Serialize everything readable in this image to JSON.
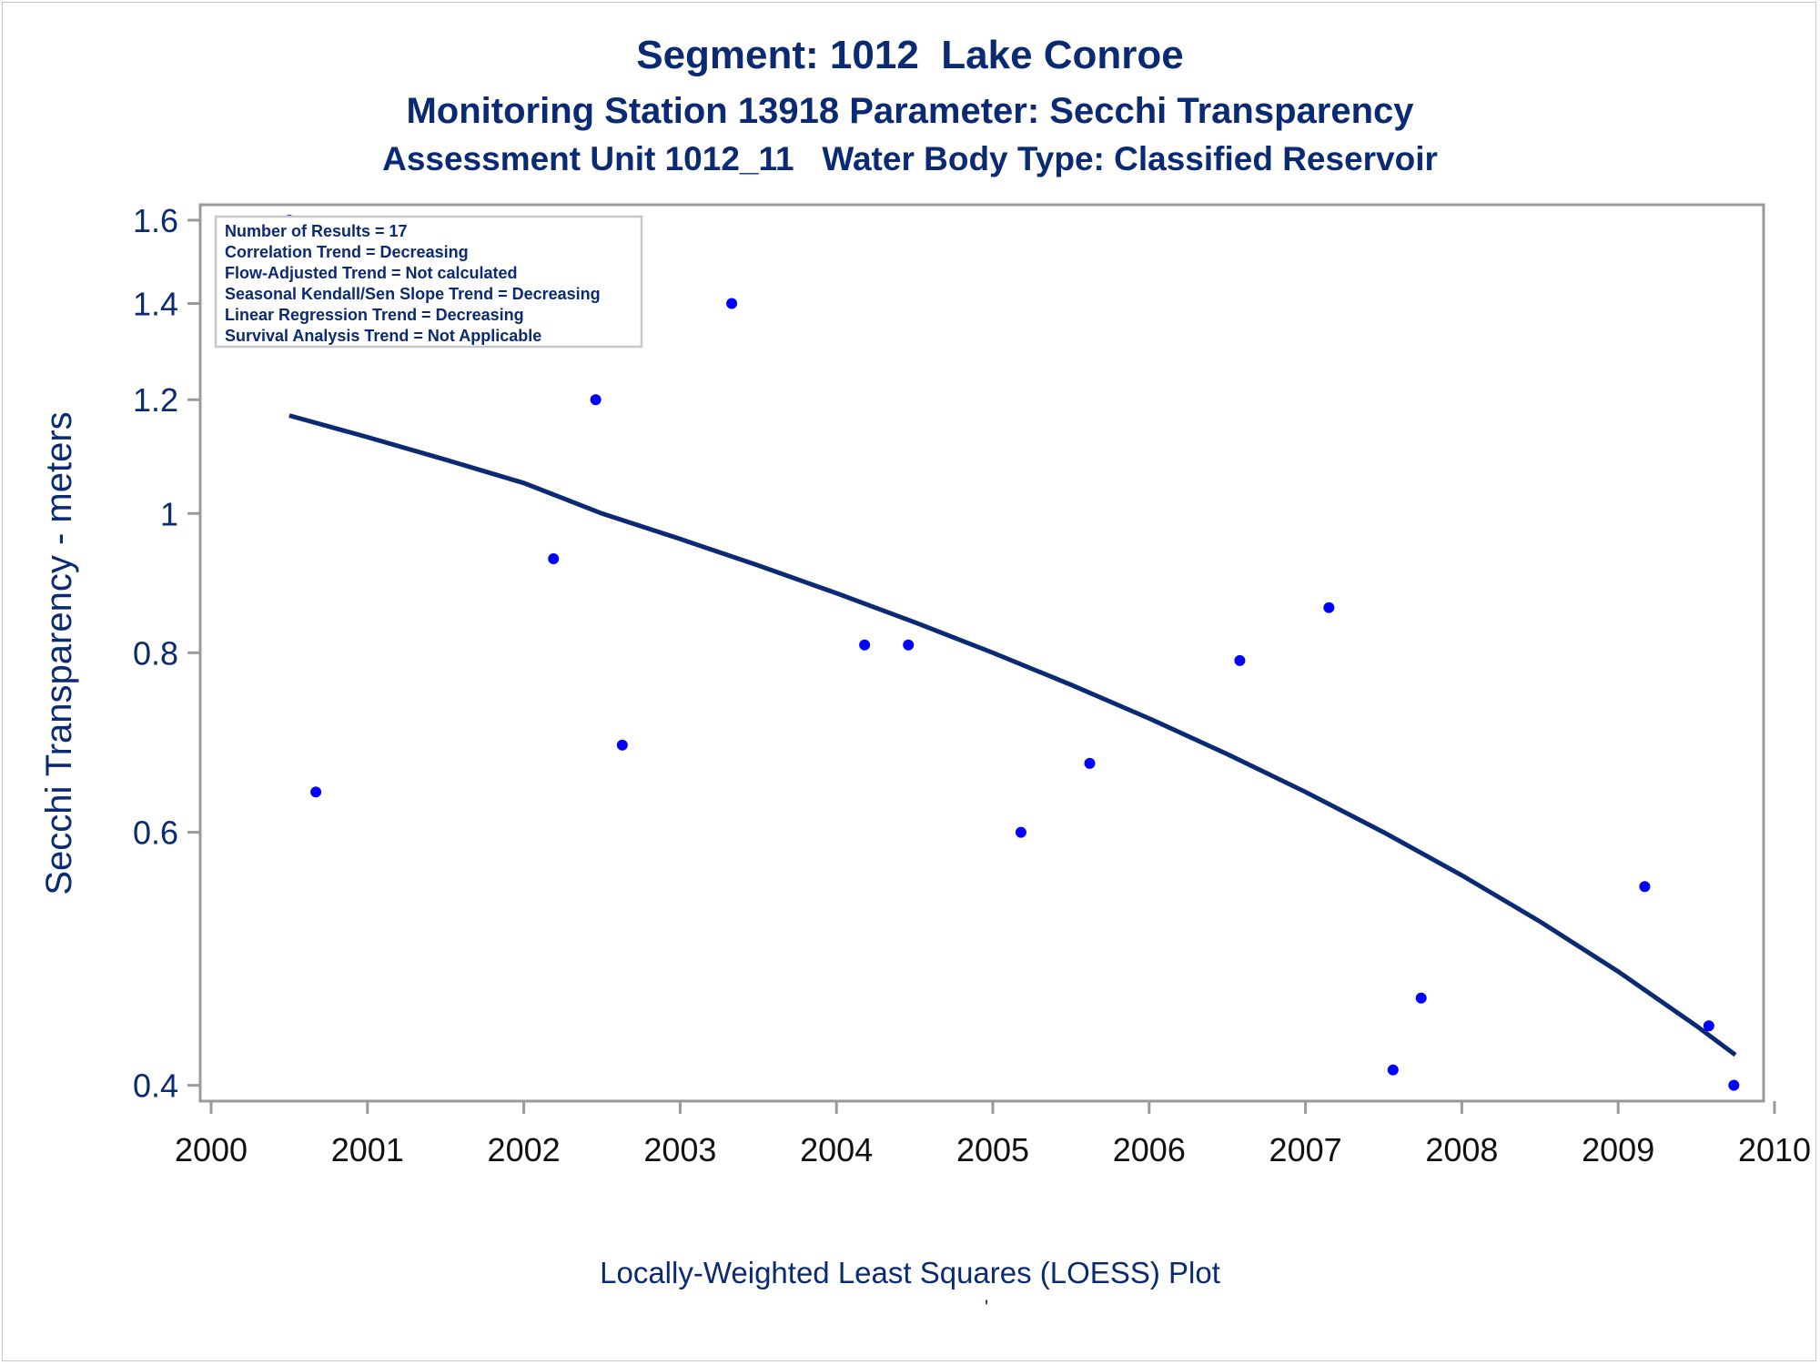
{
  "titles": {
    "line1": "Segment: 1012  Lake Conroe",
    "line2": "Monitoring Station 13918 Parameter: Secchi Transparency",
    "line3": "Assessment Unit 1012_11   Water Body Type: Classified Reservoir"
  },
  "footnote": "Locally-Weighted Least Squares (LOESS) Plot",
  "footnote_mark": "'",
  "colors": {
    "text": "#0b2a74",
    "points": "#0000ff",
    "curve": "#0b2a74",
    "axis": "#9a9a9a"
  },
  "chart_data": {
    "type": "scatter",
    "ylabel": "Secchi Transparency - meters",
    "xlabel": "",
    "yscale": "log",
    "xlim": [
      2000,
      2010
    ],
    "ylim": [
      0.39,
      1.64
    ],
    "x_ticks": [
      "2000",
      "2001",
      "2002",
      "2003",
      "2004",
      "2005",
      "2006",
      "2007",
      "2008",
      "2009",
      "2010"
    ],
    "y_ticks": [
      {
        "value": 0.4,
        "label": "0.4"
      },
      {
        "value": 0.6,
        "label": "0.6"
      },
      {
        "value": 0.8,
        "label": "0.8"
      },
      {
        "value": 1.0,
        "label": "1"
      },
      {
        "value": 1.2,
        "label": "1.2"
      },
      {
        "value": 1.4,
        "label": "1.4"
      },
      {
        "value": 1.6,
        "label": "1.6"
      }
    ],
    "legend_position": "top-left",
    "stats_box": [
      "Number of Results = 17",
      "Correlation Trend = Decreasing",
      "Flow-Adjusted Trend = Not calculated",
      "Seasonal Kendall/Sen Slope Trend = Decreasing",
      "Linear Regression Trend = Decreasing",
      "Survival Analysis Trend = Not Applicable"
    ],
    "points": [
      {
        "x": 2000.5,
        "y": 1.6
      },
      {
        "x": 2000.67,
        "y": 0.64
      },
      {
        "x": 2002.19,
        "y": 0.93
      },
      {
        "x": 2002.46,
        "y": 1.2
      },
      {
        "x": 2002.63,
        "y": 0.69
      },
      {
        "x": 2003.33,
        "y": 1.4
      },
      {
        "x": 2004.18,
        "y": 0.81
      },
      {
        "x": 2004.46,
        "y": 0.81
      },
      {
        "x": 2005.18,
        "y": 0.6
      },
      {
        "x": 2005.62,
        "y": 0.67
      },
      {
        "x": 2006.58,
        "y": 0.79
      },
      {
        "x": 2007.15,
        "y": 0.86
      },
      {
        "x": 2007.56,
        "y": 0.41
      },
      {
        "x": 2007.74,
        "y": 0.46
      },
      {
        "x": 2009.17,
        "y": 0.55
      },
      {
        "x": 2009.58,
        "y": 0.44
      },
      {
        "x": 2009.74,
        "y": 0.4
      }
    ],
    "loess_curve": [
      {
        "x": 2000.5,
        "y": 1.17
      },
      {
        "x": 2001.0,
        "y": 1.13
      },
      {
        "x": 2001.5,
        "y": 1.09
      },
      {
        "x": 2002.0,
        "y": 1.05
      },
      {
        "x": 2002.5,
        "y": 1.0
      },
      {
        "x": 2003.0,
        "y": 0.96
      },
      {
        "x": 2003.5,
        "y": 0.92
      },
      {
        "x": 2004.0,
        "y": 0.88
      },
      {
        "x": 2004.5,
        "y": 0.84
      },
      {
        "x": 2005.0,
        "y": 0.8
      },
      {
        "x": 2005.5,
        "y": 0.76
      },
      {
        "x": 2006.0,
        "y": 0.72
      },
      {
        "x": 2006.5,
        "y": 0.68
      },
      {
        "x": 2007.0,
        "y": 0.64
      },
      {
        "x": 2007.5,
        "y": 0.6
      },
      {
        "x": 2008.0,
        "y": 0.56
      },
      {
        "x": 2008.5,
        "y": 0.52
      },
      {
        "x": 2009.0,
        "y": 0.48
      },
      {
        "x": 2009.5,
        "y": 0.44
      },
      {
        "x": 2009.75,
        "y": 0.42
      }
    ]
  }
}
